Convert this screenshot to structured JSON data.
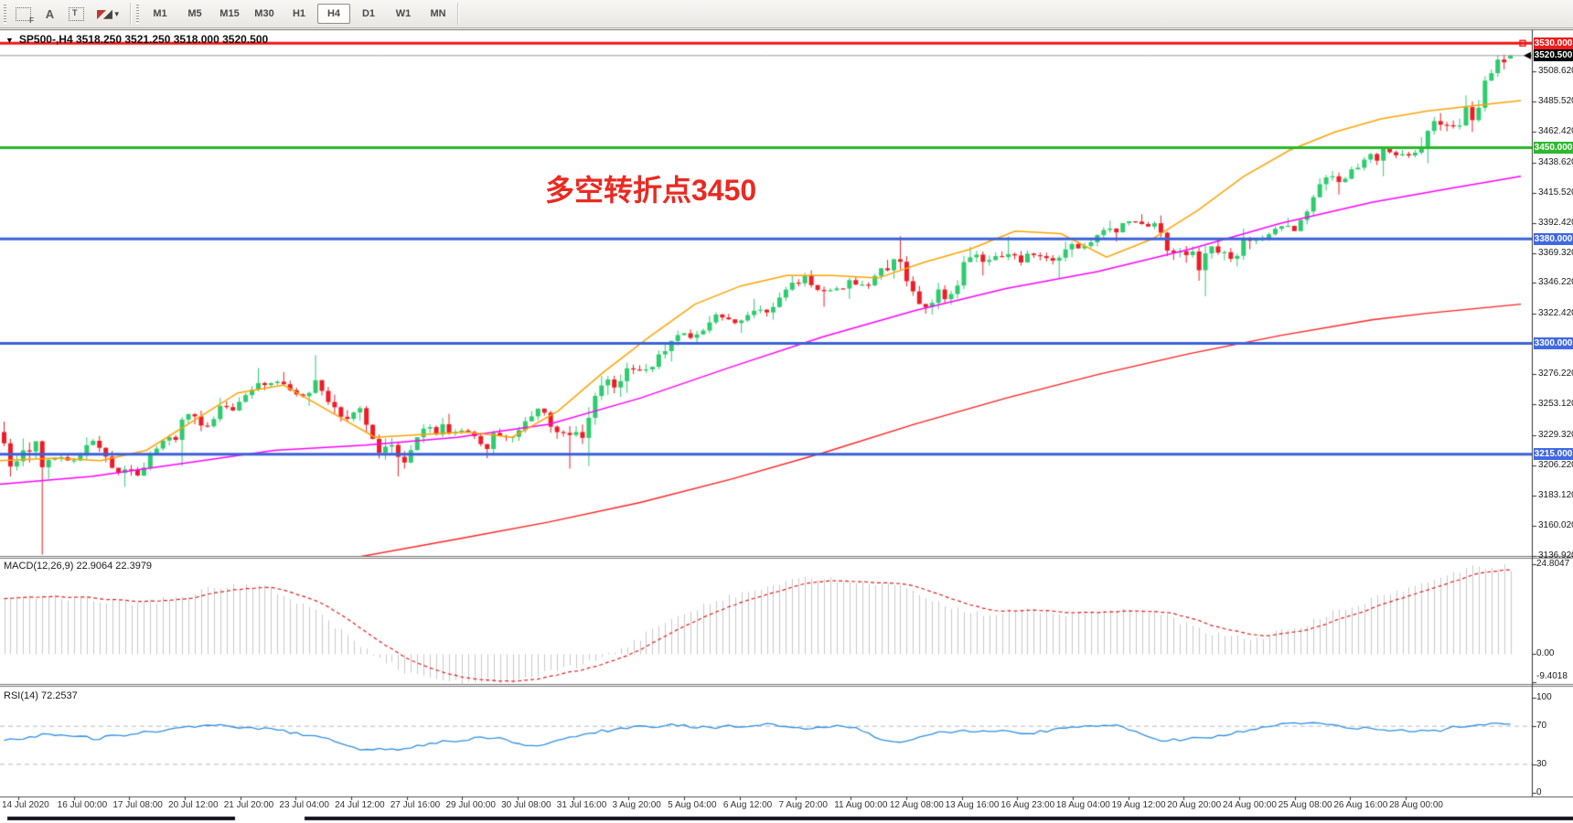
{
  "toolbar": {
    "tools": [
      {
        "name": "fibonacci-icon",
        "glyph": "F"
      },
      {
        "name": "text-icon",
        "glyph": "A"
      },
      {
        "name": "text-label-icon",
        "glyph": "T"
      },
      {
        "name": "arrows-icon",
        "glyph": "arrows",
        "dropdown": "▾"
      }
    ],
    "timeframes": [
      "M1",
      "M5",
      "M15",
      "M30",
      "H1",
      "H4",
      "D1",
      "W1",
      "MN"
    ],
    "active_timeframe": "H4"
  },
  "chart": {
    "title_dropdown": "▼",
    "title": "SP500-,H4  3518.250 3521.250 3518.000 3520.500",
    "annotation": {
      "text": "多空转折点3450",
      "color": "#e92a22"
    }
  },
  "chart_data": {
    "type": "candlestick",
    "symbol": "SP500-",
    "timeframe": "H4",
    "current_bar": {
      "open": 3518.25,
      "high": 3521.25,
      "low": 3518.0,
      "close": 3520.5
    },
    "price_range": [
      3137,
      3540
    ],
    "bars_per_day": 7,
    "daily_ohlc": [
      [
        3232,
        3240,
        3138,
        3205
      ],
      [
        3205,
        3228,
        3196,
        3222
      ],
      [
        3222,
        3229,
        3190,
        3203
      ],
      [
        3203,
        3230,
        3198,
        3226
      ],
      [
        3226,
        3258,
        3206,
        3252
      ],
      [
        3252,
        3281,
        3248,
        3268
      ],
      [
        3268,
        3278,
        3252,
        3262
      ],
      [
        3262,
        3291,
        3240,
        3247
      ],
      [
        3247,
        3252,
        3198,
        3213
      ],
      [
        3213,
        3243,
        3204,
        3238
      ],
      [
        3238,
        3246,
        3212,
        3219
      ],
      [
        3219,
        3248,
        3214,
        3244
      ],
      [
        3244,
        3250,
        3204,
        3232
      ],
      [
        3232,
        3276,
        3206,
        3271
      ],
      [
        3271,
        3300,
        3262,
        3294
      ],
      [
        3294,
        3321,
        3286,
        3316
      ],
      [
        3316,
        3334,
        3308,
        3325
      ],
      [
        3325,
        3352,
        3318,
        3346
      ],
      [
        3346,
        3356,
        3328,
        3342
      ],
      [
        3342,
        3364,
        3334,
        3356
      ],
      [
        3356,
        3382,
        3322,
        3331
      ],
      [
        3331,
        3374,
        3326,
        3368
      ],
      [
        3368,
        3382,
        3352,
        3362
      ],
      [
        3362,
        3378,
        3350,
        3372
      ],
      [
        3372,
        3394,
        3366,
        3388
      ],
      [
        3388,
        3399,
        3378,
        3392
      ],
      [
        3392,
        3398,
        3348,
        3356
      ],
      [
        3356,
        3388,
        3336,
        3380
      ],
      [
        3380,
        3396,
        3372,
        3390
      ],
      [
        3390,
        3432,
        3386,
        3428
      ],
      [
        3428,
        3446,
        3414,
        3440
      ],
      [
        3440,
        3458,
        3428,
        3451
      ],
      [
        3451,
        3490,
        3438,
        3481
      ],
      [
        3481,
        3521.25,
        3462,
        3520.5
      ]
    ],
    "colors": {
      "bull": "#2ecb6e",
      "bull_border": "#1ca656",
      "bear": "#ee1c25",
      "bear_border": "#cf1017",
      "ma_fast": "#ffa200",
      "ma_mid": "#ff00ff",
      "ma_slow": "#ff2020",
      "line_red": "#f01515",
      "line_green": "#28b828",
      "line_blue": "#3b62d8",
      "bid_line": "#9a9a9a",
      "macd_hist": "#c9c9c9",
      "macd_signal": "#e02020",
      "rsi_line": "#2f8fe0",
      "rsi_level": "#bbbbbb"
    },
    "h_lines": [
      {
        "price": 3530.0,
        "label": "3530.000",
        "color": "#f01515",
        "badge_bg": "#ef1b1b",
        "width": 3,
        "handle": true
      },
      {
        "price": 3450.0,
        "label": "3450.000",
        "color": "#28b828",
        "badge_bg": "#2eb82e",
        "width": 3
      },
      {
        "price": 3380.0,
        "label": "3380.000",
        "color": "#3b62d8",
        "badge_bg": "#4169e1",
        "width": 3
      },
      {
        "price": 3300.0,
        "label": "3300.000",
        "color": "#3b62d8",
        "badge_bg": "#4169e1",
        "width": 3
      },
      {
        "price": 3215.0,
        "label": "3215.000",
        "color": "#3b62d8",
        "badge_bg": "#4169e1",
        "width": 3
      }
    ],
    "last_price_badge": {
      "price": 3520.5,
      "label": "3520.500",
      "badge_bg": "#000000"
    },
    "axis_ticks": [
      {
        "label": "3508.620",
        "price": 3508.62
      },
      {
        "label": "3485.520",
        "price": 3485.52
      },
      {
        "label": "3462.420",
        "price": 3462.42
      },
      {
        "label": "3438.620",
        "price": 3438.62
      },
      {
        "label": "3415.520",
        "price": 3415.52
      },
      {
        "label": "3392.420",
        "price": 3392.42
      },
      {
        "label": "3369.320",
        "price": 3369.32
      },
      {
        "label": "3346.220",
        "price": 3346.22
      },
      {
        "label": "3322.420",
        "price": 3322.42
      },
      {
        "label": "3276.220",
        "price": 3276.22
      },
      {
        "label": "3253.120",
        "price": 3253.12
      },
      {
        "label": "3229.320",
        "price": 3229.32
      },
      {
        "label": "3206.220",
        "price": 3206.22
      },
      {
        "label": "3183.120",
        "price": 3183.12
      },
      {
        "label": "3160.020",
        "price": 3160.02
      },
      {
        "label": "3136.920",
        "price": 3136.92
      }
    ],
    "ma_fast_points": [
      [
        0,
        3210
      ],
      [
        60,
        3212
      ],
      [
        110,
        3210
      ],
      [
        160,
        3218
      ],
      [
        210,
        3240
      ],
      [
        260,
        3262
      ],
      [
        310,
        3268
      ],
      [
        360,
        3248
      ],
      [
        410,
        3228
      ],
      [
        460,
        3230
      ],
      [
        510,
        3232
      ],
      [
        560,
        3228
      ],
      [
        610,
        3248
      ],
      [
        660,
        3278
      ],
      [
        710,
        3305
      ],
      [
        760,
        3330
      ],
      [
        810,
        3344
      ],
      [
        860,
        3352
      ],
      [
        910,
        3352
      ],
      [
        960,
        3350
      ],
      [
        1010,
        3362
      ],
      [
        1060,
        3372
      ],
      [
        1110,
        3386
      ],
      [
        1160,
        3384
      ],
      [
        1210,
        3366
      ],
      [
        1260,
        3380
      ],
      [
        1310,
        3402
      ],
      [
        1360,
        3428
      ],
      [
        1410,
        3448
      ],
      [
        1460,
        3462
      ],
      [
        1510,
        3472
      ],
      [
        1560,
        3478
      ],
      [
        1610,
        3482
      ],
      [
        1663,
        3486
      ]
    ],
    "ma_mid_points": [
      [
        0,
        3192
      ],
      [
        100,
        3198
      ],
      [
        200,
        3208
      ],
      [
        300,
        3218
      ],
      [
        400,
        3222
      ],
      [
        500,
        3228
      ],
      [
        600,
        3238
      ],
      [
        700,
        3258
      ],
      [
        800,
        3282
      ],
      [
        900,
        3305
      ],
      [
        1000,
        3325
      ],
      [
        1100,
        3342
      ],
      [
        1200,
        3355
      ],
      [
        1300,
        3372
      ],
      [
        1400,
        3392
      ],
      [
        1500,
        3408
      ],
      [
        1580,
        3418
      ],
      [
        1663,
        3428
      ]
    ],
    "ma_slow_points": [
      [
        390,
        3136
      ],
      [
        500,
        3150
      ],
      [
        600,
        3163
      ],
      [
        700,
        3178
      ],
      [
        800,
        3196
      ],
      [
        900,
        3216
      ],
      [
        1000,
        3238
      ],
      [
        1100,
        3258
      ],
      [
        1200,
        3276
      ],
      [
        1300,
        3292
      ],
      [
        1400,
        3306
      ],
      [
        1500,
        3318
      ],
      [
        1560,
        3323
      ],
      [
        1663,
        3330
      ]
    ],
    "macd": {
      "label": "MACD(12,26,9) 22.9064 22.3979",
      "current_macd": 22.9064,
      "current_signal": 22.3979,
      "axis": [
        {
          "label": "24.8047",
          "value": 24.8047
        },
        {
          "label": "0.00",
          "value": 0.0
        },
        {
          "label": "-9.4018",
          "value": -9.4018
        }
      ],
      "daily_values": [
        15,
        16,
        15,
        14,
        16,
        19,
        18,
        12,
        2,
        -5,
        -7.5,
        -8.5,
        -6,
        -3,
        2,
        10,
        15,
        18,
        21,
        20,
        19,
        14,
        11,
        12,
        11,
        12,
        11,
        6,
        4,
        7,
        12,
        16,
        20,
        24
      ],
      "peak": 24.8047
    },
    "rsi": {
      "label": "RSI(14) 72.2537",
      "current": 72.2537,
      "axis": [
        {
          "label": "100",
          "value": 100
        },
        {
          "label": "70",
          "value": 70
        },
        {
          "label": "30",
          "value": 30
        },
        {
          "label": "0",
          "value": 0
        }
      ],
      "levels": [
        70,
        30
      ],
      "daily_values": [
        55,
        62,
        57,
        63,
        68,
        71,
        66,
        60,
        44,
        47,
        55,
        58,
        48,
        62,
        68,
        71,
        69,
        72,
        68,
        70,
        52,
        64,
        66,
        62,
        69,
        72,
        55,
        58,
        66,
        74,
        70,
        66,
        64,
        72
      ]
    },
    "time_axis": {
      "labels": [
        "14 Jul 2020",
        "16 Jul 00:00",
        "17 Jul 08:00",
        "20 Jul 12:00",
        "21 Jul 20:00",
        "23 Jul 04:00",
        "24 Jul 12:00",
        "27 Jul 16:00",
        "29 Jul 00:00",
        "30 Jul 08:00",
        "31 Jul 16:00",
        "3 Aug 20:00",
        "5 Aug 04:00",
        "6 Aug 12:00",
        "7 Aug 20:00",
        "11 Aug 00:00",
        "12 Aug 08:00",
        "13 Aug 16:00",
        "16 Aug 23:00",
        "18 Aug 04:00",
        "19 Aug 12:00",
        "20 Aug 20:00",
        "24 Aug 00:00",
        "25 Aug 08:00",
        "26 Aug 16:00",
        "28 Aug 00:00"
      ]
    }
  }
}
